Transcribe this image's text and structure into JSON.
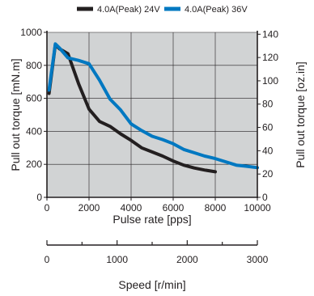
{
  "chart_data": {
    "type": "line",
    "title": "",
    "xlabel": "Pulse rate [pps]",
    "ylabel": "Pull out torque [mN.m]",
    "y2label": "Pull out torque [oz.in]",
    "x2label": "Speed [r/min]",
    "xlim": [
      0,
      10000
    ],
    "ylim": [
      0,
      1000
    ],
    "y2lim": [
      0,
      141.6
    ],
    "x2lim": [
      0,
      3000
    ],
    "xticks": [
      "0",
      "2000",
      "4000",
      "6000",
      "8000",
      "10000"
    ],
    "yticks": [
      "0",
      "200",
      "400",
      "600",
      "800",
      "1000"
    ],
    "y2ticks": [
      "0",
      "20",
      "40",
      "60",
      "80",
      "100",
      "120",
      "140"
    ],
    "x2ticks": [
      "0",
      "1000",
      "2000",
      "3000"
    ],
    "grid": true,
    "background": "#d1d3d4",
    "legend_position": "top",
    "series": [
      {
        "name": "4.0A(Peak) 24V",
        "color": "#231f20",
        "x": [
          100,
          400,
          600,
          1000,
          1500,
          2000,
          2500,
          3000,
          3500,
          4000,
          4500,
          5000,
          5500,
          6000,
          6500,
          7000,
          7500,
          8000
        ],
        "y": [
          630,
          925,
          900,
          870,
          690,
          535,
          460,
          430,
          385,
          345,
          300,
          275,
          250,
          220,
          195,
          178,
          165,
          155
        ]
      },
      {
        "name": "4.0A(Peak) 36V",
        "color": "#0078c1",
        "x": [
          100,
          400,
          600,
          1000,
          1500,
          2000,
          2500,
          3000,
          3500,
          4000,
          4500,
          5000,
          5500,
          6000,
          6500,
          7000,
          7500,
          8000,
          8500,
          9000,
          9500,
          10000
        ],
        "y": [
          650,
          930,
          905,
          845,
          830,
          810,
          710,
          595,
          530,
          445,
          405,
          370,
          350,
          325,
          290,
          270,
          250,
          235,
          215,
          195,
          188,
          180
        ]
      }
    ]
  }
}
